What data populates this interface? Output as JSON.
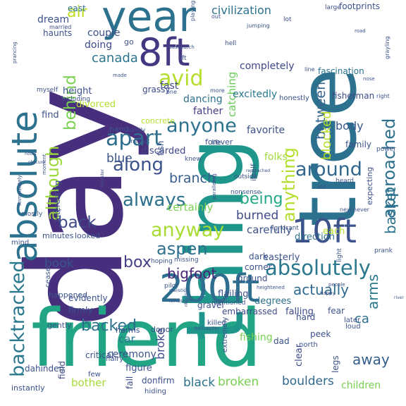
{
  "words": [
    {
      "text": "day",
      "color": "#472f7d"
    },
    {
      "text": "friend",
      "color": "#21a585"
    },
    {
      "text": "thing",
      "color": "#1f968b"
    },
    {
      "text": "tree",
      "color": "#2c718e"
    },
    {
      "text": "year",
      "color": "#2c718e"
    },
    {
      "text": "absolute",
      "color": "#2c718e"
    },
    {
      "text": "8ft",
      "color": "#453781"
    },
    {
      "text": "200ft",
      "color": "#2e6e8e"
    },
    {
      "text": "10ft",
      "color": "#3b528b"
    },
    {
      "text": "absolutely",
      "color": "#2a788e"
    },
    {
      "text": "backtracked",
      "color": "#2a788e"
    },
    {
      "text": "approached",
      "color": "#2d708e"
    },
    {
      "text": "although",
      "color": "#9cd93b"
    },
    {
      "text": "behind",
      "color": "#7ad151"
    },
    {
      "text": "apart",
      "color": "#2d708e"
    },
    {
      "text": "avid",
      "color": "#b5de2b"
    },
    {
      "text": "air",
      "color": "#bddf26"
    },
    {
      "text": "anyone",
      "color": "#2c728e"
    },
    {
      "text": "anyway",
      "color": "#a8db34"
    },
    {
      "text": "anything",
      "color": "#b5de2b"
    },
    {
      "text": "around",
      "color": "#31668e"
    },
    {
      "text": "always",
      "color": "#2d708e"
    },
    {
      "text": "along",
      "color": "#3b528b"
    },
    {
      "text": "aspen",
      "color": "#2d708e"
    },
    {
      "text": "back",
      "color": "#3e4a89"
    },
    {
      "text": "backed",
      "color": "#2c718e"
    },
    {
      "text": "basket",
      "color": "#2c728e"
    },
    {
      "text": "being",
      "color": "#22a884"
    },
    {
      "text": "between",
      "color": "#33628d"
    },
    {
      "text": "bigfoot",
      "color": "#482475"
    },
    {
      "text": "blocked",
      "color": "#b8de29"
    },
    {
      "text": "body",
      "color": "#38598c"
    },
    {
      "text": "book",
      "color": "#3a548c"
    },
    {
      "text": "box",
      "color": "#433e85"
    },
    {
      "text": "branch",
      "color": "#355f8d"
    },
    {
      "text": "burned",
      "color": "#3e4a89"
    },
    {
      "text": "actually",
      "color": "#2f6b8e"
    },
    {
      "text": "arms",
      "color": "#2a788e"
    },
    {
      "text": "away",
      "color": "#355f8d"
    },
    {
      "text": "ca",
      "color": "#2c718e"
    },
    {
      "text": "canada",
      "color": "#2b758e"
    },
    {
      "text": "blue",
      "color": "#3b528b"
    },
    {
      "text": "certainly",
      "color": "#7ad151"
    },
    {
      "text": "carefully",
      "color": "#3b528b"
    },
    {
      "text": "black",
      "color": "#2c728e"
    },
    {
      "text": "broken",
      "color": "#7ad151"
    },
    {
      "text": "boulders",
      "color": "#31688e"
    },
    {
      "text": "broke",
      "color": "#3e4a89"
    },
    {
      "text": "bother",
      "color": "#a8db34"
    },
    {
      "text": "car",
      "color": "#2a788e"
    },
    {
      "text": "ceremony",
      "color": "#3b528b"
    },
    {
      "text": "children",
      "color": "#7ad151"
    },
    {
      "text": "catching",
      "color": "#6ccd5a"
    },
    {
      "text": "civilization",
      "color": "#2c728e"
    },
    {
      "text": "completely",
      "color": "#3f4889"
    },
    {
      "text": "excitedly",
      "color": "#2a788e"
    },
    {
      "text": "favorite",
      "color": "#3b528b"
    },
    {
      "text": "folks",
      "color": "#9fda3a"
    },
    {
      "text": "dancing",
      "color": "#2c718e"
    },
    {
      "text": "father",
      "color": "#433e85"
    },
    {
      "text": "fascination",
      "color": "#2c718e"
    },
    {
      "text": "fisherman",
      "color": "#3e4a89"
    },
    {
      "text": "doing",
      "color": "#3e4a89"
    },
    {
      "text": "couple",
      "color": "#3b528b"
    },
    {
      "text": "dream",
      "color": "#3b528b"
    },
    {
      "text": "east",
      "color": "#2c728e"
    },
    {
      "text": "haunts",
      "color": "#3b528b"
    },
    {
      "text": "grassy",
      "color": "#3f4889"
    },
    {
      "text": "height",
      "color": "#3b528b"
    },
    {
      "text": "divorced",
      "color": "#b5de2b"
    },
    {
      "text": "fast",
      "color": "#3e4a89"
    },
    {
      "text": "find",
      "color": "#3b528b"
    },
    {
      "text": "concrete",
      "color": "#b5de2b"
    },
    {
      "text": "hand",
      "color": "#3b528b"
    },
    {
      "text": "discarded",
      "color": "#3f4889"
    },
    {
      "text": "fish",
      "color": "#3b528b"
    },
    {
      "text": "field",
      "color": "#3e4a89"
    },
    {
      "text": "family",
      "color": "#3b528b"
    },
    {
      "text": "dark",
      "color": "#3b528b"
    },
    {
      "text": "each",
      "color": "#b5de2b"
    },
    {
      "text": "direction",
      "color": "#2c718e"
    },
    {
      "text": "easterly",
      "color": "#3b528b"
    },
    {
      "text": "corner",
      "color": "#3b528b"
    },
    {
      "text": "ground",
      "color": "#3b528b"
    },
    {
      "text": "flailing",
      "color": "#3b528b"
    },
    {
      "text": "degrees",
      "color": "#2c718e"
    },
    {
      "text": "falling",
      "color": "#3e4a89"
    },
    {
      "text": "fear",
      "color": "#3b528b"
    },
    {
      "text": "evidently",
      "color": "#3b528b"
    },
    {
      "text": "firmly",
      "color": "#3b528b"
    },
    {
      "text": "gently",
      "color": "#3b528b"
    },
    {
      "text": "happened",
      "color": "#3b528b"
    },
    {
      "text": "embarrassed",
      "color": "#3e4a89"
    },
    {
      "text": "gravel",
      "color": "#3b528b"
    },
    {
      "text": "hard",
      "color": "#3b528b"
    },
    {
      "text": "clear",
      "color": "#3e4a89"
    },
    {
      "text": "dad",
      "color": "#3b528b"
    },
    {
      "text": "figure",
      "color": "#3b528b"
    },
    {
      "text": "fishing",
      "color": "#7ad151"
    },
    {
      "text": "critical",
      "color": "#3b528b"
    },
    {
      "text": "dahinden",
      "color": "#3b528b"
    },
    {
      "text": "fall",
      "color": "#3e4a89"
    },
    {
      "text": "donfirm",
      "color": "#3b528b"
    },
    {
      "text": "instantly",
      "color": "#3b528b"
    },
    {
      "text": "peek",
      "color": "#3b528b"
    },
    {
      "text": "legs",
      "color": "#3b528b"
    },
    {
      "text": "footprints",
      "color": "#3b528b"
    },
    {
      "text": "harms",
      "color": "#3b528b"
    },
    {
      "text": "donor",
      "color": "#3b528b"
    },
    {
      "text": "minutes",
      "color": "#3b528b"
    },
    {
      "text": "looked",
      "color": "#3b528b"
    },
    {
      "text": "interesting",
      "color": "#3b528b"
    },
    {
      "text": "mind",
      "color": "#3b528b"
    },
    {
      "text": "go",
      "color": "#3b528b"
    },
    {
      "text": "married",
      "color": "#3b528b"
    },
    {
      "text": "ignorant",
      "color": "#3b528b"
    },
    {
      "text": "heard",
      "color": "#3b528b"
    },
    {
      "text": "mostly",
      "color": "#3b528b"
    },
    {
      "text": "few",
      "color": "#3b528b"
    },
    {
      "text": "killed",
      "color": "#3b528b"
    },
    {
      "text": "hiding",
      "color": "#3b528b"
    },
    {
      "text": "north",
      "color": "#3b528b"
    },
    {
      "text": "hairy",
      "color": "#3b528b"
    },
    {
      "text": "expecting",
      "color": "#3b528b"
    },
    {
      "text": "forever",
      "color": "#3b528b"
    },
    {
      "text": "itself",
      "color": "#3b528b"
    },
    {
      "text": "including",
      "color": "#3b528b"
    },
    {
      "text": "myself",
      "color": "#3b528b"
    },
    {
      "text": "instinct",
      "color": "#3b528b"
    },
    {
      "text": "honestly",
      "color": "#3b528b"
    },
    {
      "text": "later",
      "color": "#3b528b"
    },
    {
      "text": "extremely",
      "color": "#3b528b"
    },
    {
      "text": "loud",
      "color": "#3b528b"
    },
    {
      "text": "lift",
      "color": "#3b528b"
    },
    {
      "text": "hell",
      "color": "#3b528b"
    },
    {
      "text": "lot",
      "color": "#3b528b"
    },
    {
      "text": "light",
      "color": "#3b528b"
    },
    {
      "text": "made",
      "color": "#3b528b"
    },
    {
      "text": "life",
      "color": "#3b528b"
    },
    {
      "text": "luckily",
      "color": "#3b528b"
    },
    {
      "text": "large",
      "color": "#3b528b"
    },
    {
      "text": "missing",
      "color": "#3b528b"
    },
    {
      "text": "hoping",
      "color": "#3b528b"
    },
    {
      "text": "nonsense",
      "color": "#3b528b"
    },
    {
      "text": "outside",
      "color": "#3b528b"
    },
    {
      "text": "knew",
      "color": "#3b528b"
    },
    {
      "text": "mentioned",
      "color": "#3b528b"
    },
    {
      "text": "pilot",
      "color": "#3b528b"
    },
    {
      "text": "next",
      "color": "#3b528b"
    },
    {
      "text": "never",
      "color": "#3b528b"
    },
    {
      "text": "prank",
      "color": "#3b528b"
    },
    {
      "text": "road",
      "color": "#3b528b"
    },
    {
      "text": "power",
      "color": "#3b528b"
    },
    {
      "text": "old",
      "color": "#3b528b"
    },
    {
      "text": "one",
      "color": "#3b528b"
    },
    {
      "text": "more",
      "color": "#3b528b"
    },
    {
      "text": "out",
      "color": "#3b528b"
    },
    {
      "text": "playing",
      "color": "#3b528b"
    },
    {
      "text": "jumping",
      "color": "#3b528b"
    },
    {
      "text": "right",
      "color": "#3b528b"
    },
    {
      "text": "grayling",
      "color": "#3b528b"
    },
    {
      "text": "line",
      "color": "#3b528b"
    },
    {
      "text": "near",
      "color": "#3b528b"
    },
    {
      "text": "happy",
      "color": "#3b528b"
    },
    {
      "text": "sasquatch",
      "color": "#3b528b"
    },
    {
      "text": "heightened",
      "color": "#3b528b"
    },
    {
      "text": "helicopter",
      "color": "#3b528b"
    },
    {
      "text": "people",
      "color": "#3b528b"
    },
    {
      "text": "hindsight",
      "color": "#3b528b"
    },
    {
      "text": "river",
      "color": "#3b528b"
    },
    {
      "text": "immediately",
      "color": "#3b528b"
    },
    {
      "text": "moment",
      "color": "#3b528b"
    },
    {
      "text": "nose",
      "color": "#3b528b"
    },
    {
      "text": "prancing",
      "color": "#3b528b"
    },
    {
      "text": "paralleling",
      "color": "#3b528b"
    },
    {
      "text": "reproached",
      "color": "#3b528b"
    },
    {
      "text": "realistic",
      "color": "#3b528b"
    },
    {
      "text": "monster",
      "color": "#3b528b"
    },
    {
      "text": "ritualistic",
      "color": "#3b528b"
    },
    {
      "text": "notes",
      "color": "#3b528b"
    },
    {
      "text": "obscure",
      "color": "#3b528b"
    },
    {
      "text": "cease",
      "color": "#3b528b"
    }
  ]
}
